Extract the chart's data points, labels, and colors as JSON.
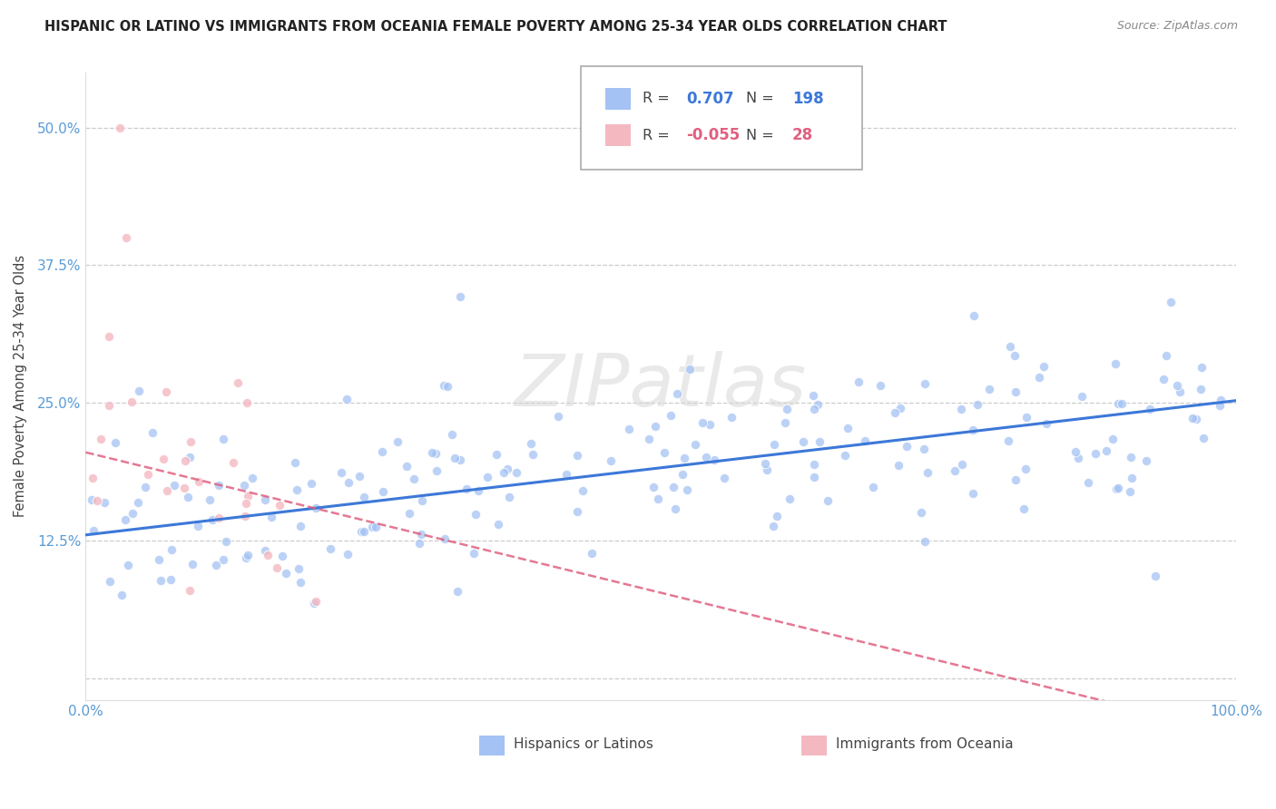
{
  "title": "HISPANIC OR LATINO VS IMMIGRANTS FROM OCEANIA FEMALE POVERTY AMONG 25-34 YEAR OLDS CORRELATION CHART",
  "source": "Source: ZipAtlas.com",
  "ylabel": "Female Poverty Among 25-34 Year Olds",
  "xlim": [
    0,
    1.0
  ],
  "ylim": [
    -0.02,
    0.55
  ],
  "yticks": [
    0.0,
    0.125,
    0.25,
    0.375,
    0.5
  ],
  "yticklabels": [
    "",
    "12.5%",
    "25.0%",
    "37.5%",
    "50.0%"
  ],
  "R_blue": 0.707,
  "N_blue": 198,
  "R_pink": -0.055,
  "N_pink": 28,
  "blue_color": "#a4c2f4",
  "pink_color": "#f4b8c1",
  "trend_blue": "#3c78d8",
  "trend_pink": "#e06080",
  "watermark": "ZIPatlas",
  "legend_label_blue": "Hispanics or Latinos",
  "legend_label_pink": "Immigrants from Oceania",
  "blue_seed": 42,
  "pink_seed": 99
}
